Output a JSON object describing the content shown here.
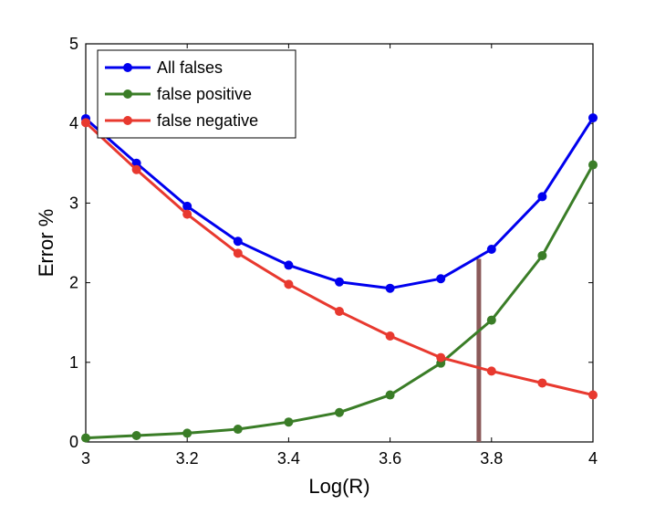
{
  "chart_data": {
    "type": "line",
    "title": "",
    "xlabel": "Log(R)",
    "ylabel": "Error %",
    "xlim": [
      3,
      4
    ],
    "ylim": [
      0,
      5
    ],
    "x_ticks": [
      "3",
      "3.2",
      "3.4",
      "3.6",
      "3.8",
      "4"
    ],
    "y_ticks": [
      "0",
      "1",
      "2",
      "3",
      "4",
      "5"
    ],
    "legend_position": "top-left",
    "grid": false,
    "x": [
      3.0,
      3.1,
      3.2,
      3.3,
      3.4,
      3.5,
      3.6,
      3.7,
      3.8,
      3.9,
      4.0
    ],
    "series": [
      {
        "name": "All falses",
        "color": "#0000ee",
        "values": [
          4.06,
          3.5,
          2.96,
          2.52,
          2.22,
          2.01,
          1.93,
          2.05,
          2.42,
          3.08,
          4.07
        ]
      },
      {
        "name": "false positive",
        "color": "#3a7d27",
        "values": [
          0.05,
          0.08,
          0.11,
          0.16,
          0.25,
          0.37,
          0.59,
          0.99,
          1.53,
          2.34,
          3.48
        ]
      },
      {
        "name": "false negative",
        "color": "#e8392f",
        "values": [
          4.01,
          3.42,
          2.86,
          2.37,
          1.98,
          1.64,
          1.33,
          1.06,
          0.89,
          0.74,
          0.59
        ]
      }
    ],
    "annotations": [
      {
        "type": "vertical-line",
        "x": 3.775,
        "y_from": 0,
        "y_to": 2.3,
        "color": "#8b5a5a"
      }
    ]
  }
}
